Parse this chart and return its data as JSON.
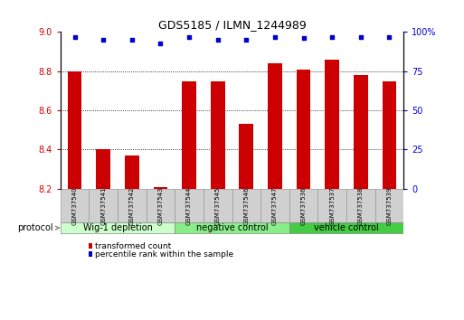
{
  "title": "GDS5185 / ILMN_1244989",
  "samples": [
    "GSM737540",
    "GSM737541",
    "GSM737542",
    "GSM737543",
    "GSM737544",
    "GSM737545",
    "GSM737546",
    "GSM737547",
    "GSM737536",
    "GSM737537",
    "GSM737538",
    "GSM737539"
  ],
  "bar_values": [
    8.8,
    8.4,
    8.37,
    8.21,
    8.75,
    8.75,
    8.53,
    8.84,
    8.81,
    8.86,
    8.78,
    8.75
  ],
  "percentile_values": [
    97,
    95,
    95,
    93,
    97,
    95,
    95,
    97,
    96,
    97,
    97,
    97
  ],
  "bar_bottom": 8.2,
  "ymin": 8.2,
  "ymax": 9.0,
  "yticks_left": [
    8.2,
    8.4,
    8.6,
    8.8,
    9.0
  ],
  "yticks_right": [
    0,
    25,
    50,
    75,
    100
  ],
  "bar_color": "#cc0000",
  "percentile_color": "#0000cc",
  "groups": [
    {
      "label": "Wig-1 depletion",
      "start": 0,
      "end": 4,
      "color": "#ccffcc"
    },
    {
      "label": "negative control",
      "start": 4,
      "end": 8,
      "color": "#88ee88"
    },
    {
      "label": "vehicle control",
      "start": 8,
      "end": 12,
      "color": "#44cc44"
    }
  ],
  "protocol_label": "protocol",
  "legend_bar_label": "transformed count",
  "legend_dot_label": "percentile rank within the sample",
  "bg_color": "#ffffff",
  "sample_box_color": "#d0d0d0",
  "bar_width": 0.5
}
